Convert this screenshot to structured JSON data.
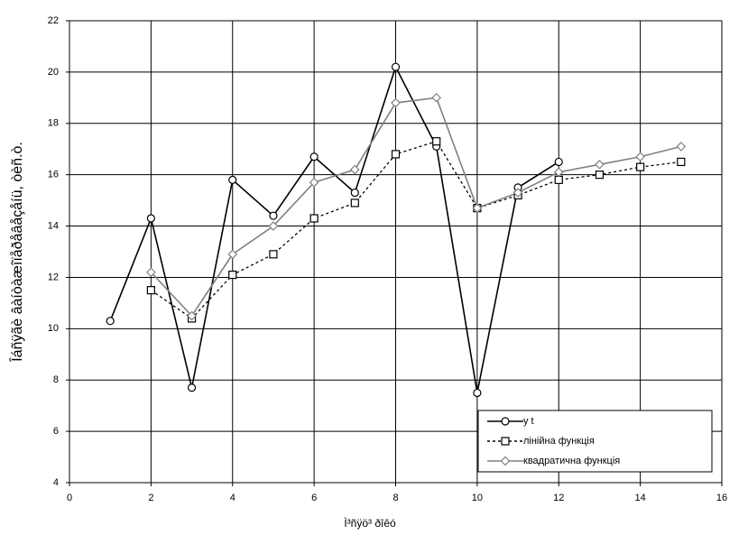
{
  "chart_data": {
    "type": "line",
    "x_label": "Ì³ñÿö³ ðîêó",
    "y_label": "Îáñÿãè âàíòàæîïåðåâåçåíü, òèñ.ò.",
    "x": [
      1,
      2,
      3,
      4,
      5,
      6,
      7,
      8,
      9,
      10,
      11,
      12,
      13,
      14,
      15
    ],
    "series": [
      {
        "name": "y t",
        "color": "#000000",
        "marker": "circle",
        "dash": "solid",
        "values": [
          10.3,
          14.3,
          7.7,
          15.8,
          14.4,
          16.7,
          15.3,
          20.2,
          17.1,
          7.5,
          15.5,
          16.5,
          null,
          null,
          null
        ]
      },
      {
        "name": "лінійна функція",
        "color": "#000000",
        "marker": "square",
        "dash": "dotted",
        "values": [
          null,
          11.5,
          10.4,
          12.1,
          12.9,
          14.3,
          14.9,
          16.8,
          17.3,
          14.7,
          15.2,
          15.8,
          16.0,
          16.3,
          16.5
        ]
      },
      {
        "name": "квадратична функція",
        "color": "#808080",
        "marker": "diamond",
        "dash": "solid",
        "values": [
          null,
          12.2,
          10.5,
          12.9,
          14.0,
          15.7,
          16.2,
          18.8,
          19.0,
          14.7,
          15.3,
          16.1,
          16.4,
          16.7,
          17.1
        ]
      }
    ],
    "xlim": [
      0,
      16
    ],
    "xticks": [
      0,
      2,
      4,
      6,
      8,
      10,
      12,
      14,
      16
    ],
    "ylim": [
      4,
      22
    ],
    "yticks": [
      4,
      6,
      8,
      10,
      12,
      14,
      16,
      18,
      20,
      22
    ],
    "grid": true,
    "legend": "lower right"
  }
}
